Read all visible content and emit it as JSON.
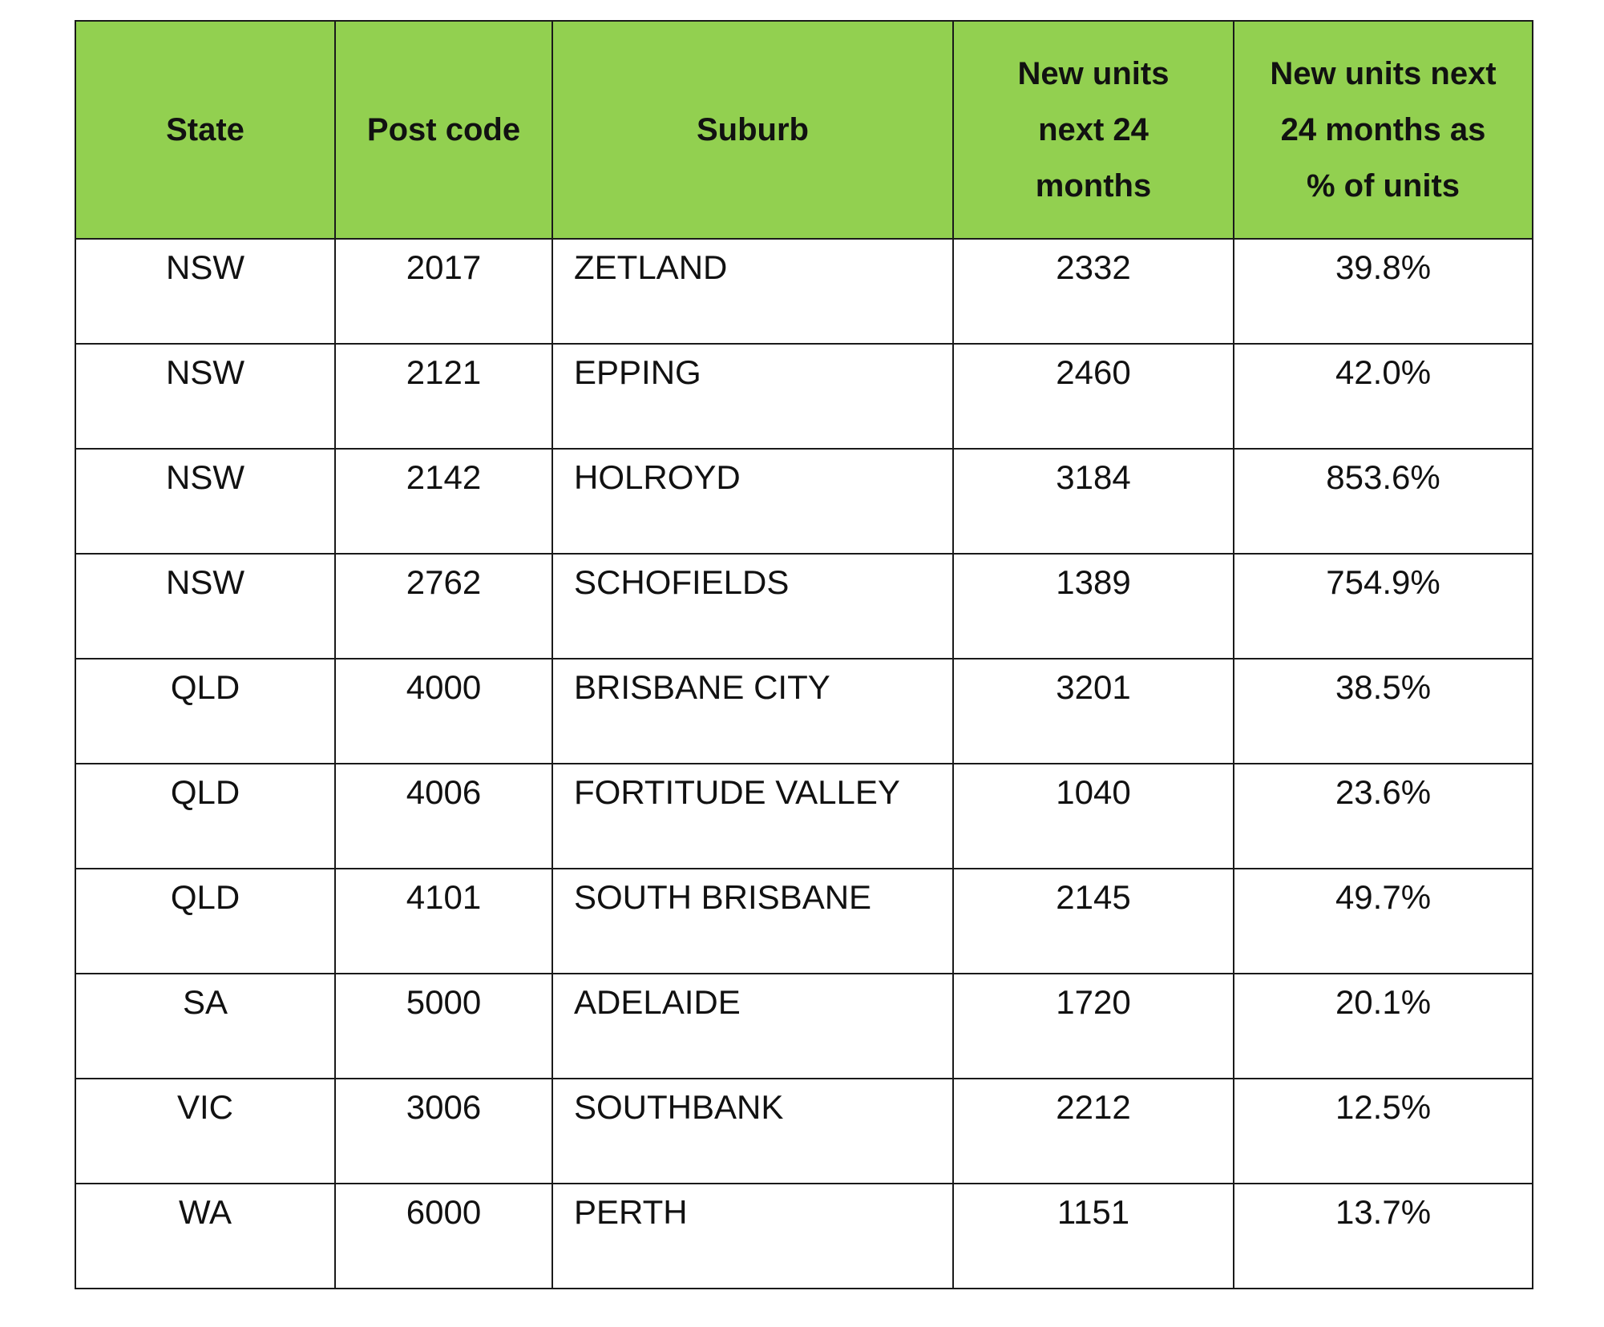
{
  "table": {
    "headers": {
      "state": "State",
      "post_code": "Post code",
      "suburb": "Suburb",
      "new_units": [
        "New units",
        "next 24",
        "months"
      ],
      "pct_units": [
        "New units next",
        "24 months as",
        "% of units"
      ]
    },
    "rows": [
      {
        "state": "NSW",
        "post_code": "2017",
        "suburb": "ZETLAND",
        "new_units": "2332",
        "pct_units": "39.8%"
      },
      {
        "state": "NSW",
        "post_code": "2121",
        "suburb": "EPPING",
        "new_units": "2460",
        "pct_units": "42.0%"
      },
      {
        "state": "NSW",
        "post_code": "2142",
        "suburb": "HOLROYD",
        "new_units": "3184",
        "pct_units": "853.6%"
      },
      {
        "state": "NSW",
        "post_code": "2762",
        "suburb": "SCHOFIELDS",
        "new_units": "1389",
        "pct_units": "754.9%"
      },
      {
        "state": "QLD",
        "post_code": "4000",
        "suburb": "BRISBANE CITY",
        "new_units": "3201",
        "pct_units": "38.5%"
      },
      {
        "state": "QLD",
        "post_code": "4006",
        "suburb": "FORTITUDE VALLEY",
        "new_units": "1040",
        "pct_units": "23.6%"
      },
      {
        "state": "QLD",
        "post_code": "4101",
        "suburb": "SOUTH BRISBANE",
        "new_units": "2145",
        "pct_units": "49.7%"
      },
      {
        "state": "SA",
        "post_code": "5000",
        "suburb": "ADELAIDE",
        "new_units": "1720",
        "pct_units": "20.1%"
      },
      {
        "state": "VIC",
        "post_code": "3006",
        "suburb": "SOUTHBANK",
        "new_units": "2212",
        "pct_units": "12.5%"
      },
      {
        "state": "WA",
        "post_code": "6000",
        "suburb": "PERTH",
        "new_units": "1151",
        "pct_units": "13.7%"
      }
    ]
  },
  "colors": {
    "header_background": "#92d050",
    "border": "#1a1a1a"
  }
}
